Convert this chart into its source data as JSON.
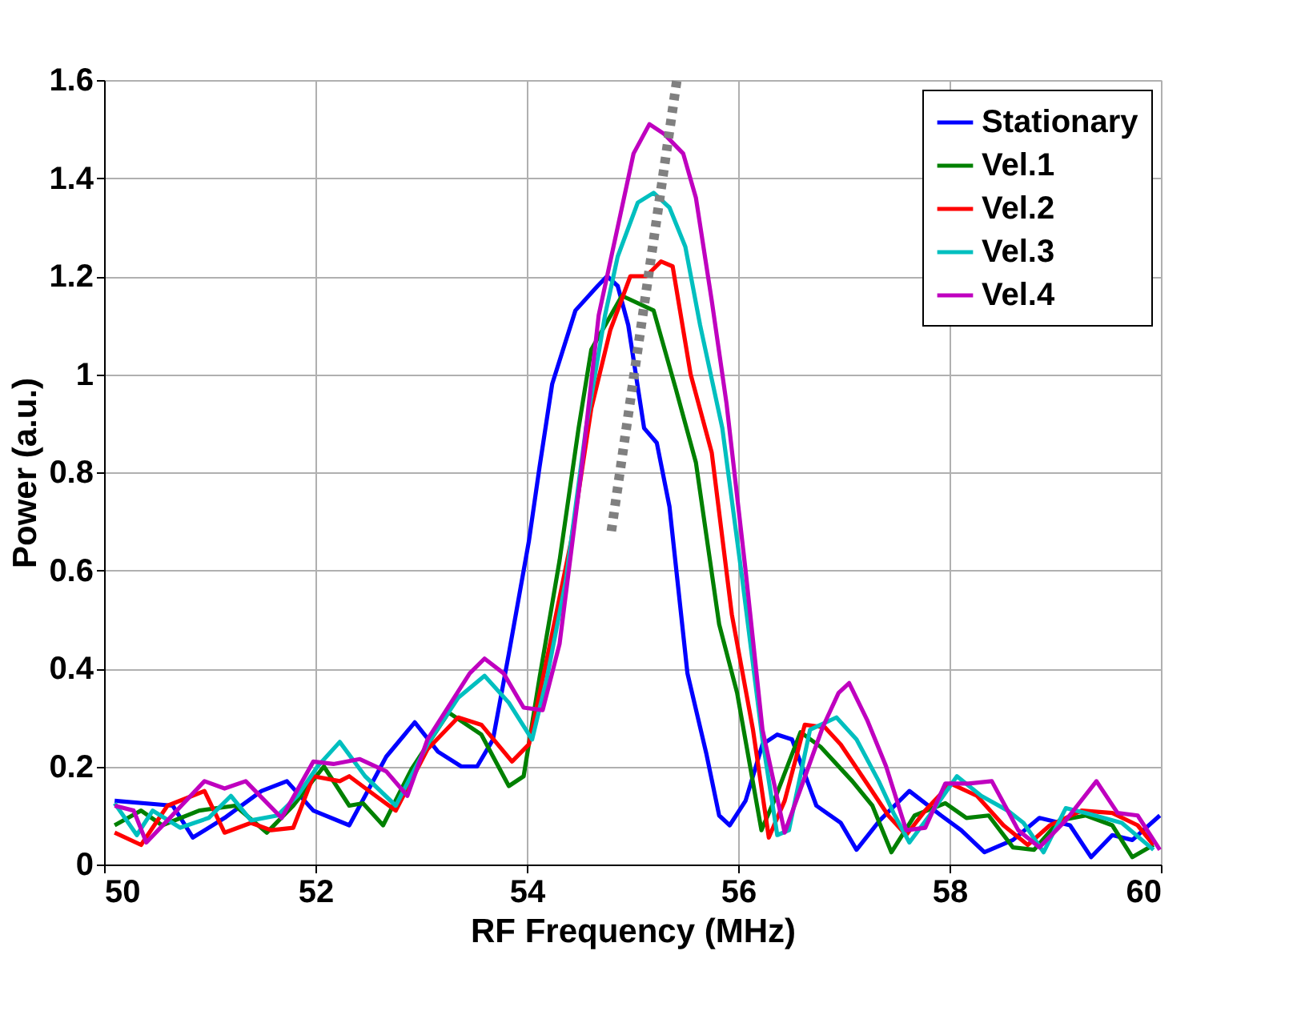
{
  "chart_data": {
    "type": "line",
    "xlabel": "RF Frequency (MHz)",
    "ylabel": "Power (a.u.)",
    "xlim": [
      50,
      60
    ],
    "xticks": [
      50,
      52,
      54,
      56,
      58,
      60
    ],
    "ylim": [
      0,
      1.6
    ],
    "yticks": [
      0,
      0.2,
      0.4,
      0.6,
      0.8,
      1,
      1.2,
      1.4,
      1.6
    ],
    "grid": true,
    "legend": "top right",
    "line_style": "solid",
    "series": [
      {
        "name": "Stationary",
        "color": "#0000ff",
        "x": [
          50.1,
          50.65,
          50.84,
          51.14,
          51.49,
          51.73,
          51.98,
          52.32,
          52.67,
          52.94,
          53.16,
          53.38,
          53.53,
          53.68,
          53.83,
          54.02,
          54.12,
          54.24,
          54.46,
          54.67,
          54.76,
          54.86,
          54.96,
          55.11,
          55.23,
          55.35,
          55.52,
          55.7,
          55.82,
          55.92,
          56.07,
          56.23,
          56.37,
          56.51,
          56.74,
          56.97,
          57.12,
          57.34,
          57.62,
          57.92,
          58.11,
          58.33,
          58.6,
          58.85,
          59.14,
          59.34,
          59.54,
          59.73,
          59.99
        ],
        "values": [
          0.13,
          0.12,
          0.055,
          0.095,
          0.15,
          0.17,
          0.11,
          0.08,
          0.22,
          0.29,
          0.23,
          0.2,
          0.2,
          0.255,
          0.43,
          0.66,
          0.81,
          0.98,
          1.13,
          1.18,
          1.2,
          1.18,
          1.1,
          0.89,
          0.86,
          0.73,
          0.39,
          0.225,
          0.1,
          0.08,
          0.13,
          0.245,
          0.265,
          0.255,
          0.12,
          0.085,
          0.03,
          0.09,
          0.15,
          0.1,
          0.07,
          0.025,
          0.05,
          0.095,
          0.08,
          0.015,
          0.06,
          0.05,
          0.1
        ]
      },
      {
        "name": "Vel.1",
        "color": "#008000",
        "x": [
          50.1,
          50.35,
          50.55,
          50.9,
          51.24,
          51.54,
          51.79,
          52.08,
          52.32,
          52.45,
          52.64,
          52.91,
          53.26,
          53.57,
          53.83,
          53.97,
          54.12,
          54.31,
          54.49,
          54.61,
          54.9,
          55.2,
          55.41,
          55.6,
          55.82,
          55.99,
          56.22,
          56.34,
          56.59,
          56.78,
          57.08,
          57.27,
          57.45,
          57.67,
          57.96,
          58.16,
          58.37,
          58.6,
          58.8,
          59.04,
          59.29,
          59.54,
          59.73,
          59.93
        ],
        "values": [
          0.08,
          0.11,
          0.08,
          0.11,
          0.12,
          0.065,
          0.12,
          0.2,
          0.12,
          0.125,
          0.08,
          0.195,
          0.31,
          0.265,
          0.16,
          0.18,
          0.38,
          0.62,
          0.89,
          1.05,
          1.16,
          1.13,
          0.97,
          0.82,
          0.49,
          0.35,
          0.07,
          0.13,
          0.27,
          0.24,
          0.17,
          0.12,
          0.025,
          0.1,
          0.125,
          0.095,
          0.1,
          0.035,
          0.03,
          0.09,
          0.1,
          0.08,
          0.015,
          0.04
        ]
      },
      {
        "name": "Vel.2",
        "color": "#ff0000",
        "x": [
          50.1,
          50.35,
          50.6,
          50.95,
          51.14,
          51.39,
          51.58,
          51.79,
          51.98,
          52.23,
          52.32,
          52.57,
          52.76,
          53.06,
          53.35,
          53.57,
          53.86,
          54.02,
          54.22,
          54.42,
          54.61,
          54.79,
          54.98,
          55.13,
          55.27,
          55.38,
          55.55,
          55.75,
          55.94,
          56.14,
          56.29,
          56.44,
          56.63,
          56.82,
          56.97,
          57.22,
          57.42,
          57.59,
          57.77,
          58.01,
          58.26,
          58.51,
          58.74,
          58.95,
          59.25,
          59.54,
          59.78,
          59.93
        ],
        "values": [
          0.065,
          0.04,
          0.12,
          0.15,
          0.065,
          0.085,
          0.07,
          0.075,
          0.18,
          0.17,
          0.18,
          0.14,
          0.11,
          0.235,
          0.3,
          0.285,
          0.21,
          0.245,
          0.45,
          0.66,
          0.93,
          1.09,
          1.2,
          1.2,
          1.23,
          1.22,
          1.0,
          0.84,
          0.51,
          0.275,
          0.055,
          0.13,
          0.285,
          0.28,
          0.245,
          0.165,
          0.1,
          0.06,
          0.11,
          0.165,
          0.14,
          0.08,
          0.04,
          0.08,
          0.11,
          0.105,
          0.08,
          0.04
        ]
      },
      {
        "name": "Vel.3",
        "color": "#00bfbf",
        "x": [
          50.1,
          50.31,
          50.46,
          50.72,
          50.99,
          51.2,
          51.39,
          51.64,
          51.83,
          52.02,
          52.23,
          52.47,
          52.76,
          53.06,
          53.35,
          53.6,
          53.83,
          54.05,
          54.19,
          54.37,
          54.56,
          54.74,
          54.86,
          55.05,
          55.2,
          55.35,
          55.5,
          55.64,
          55.85,
          56.04,
          56.23,
          56.37,
          56.48,
          56.68,
          56.93,
          57.12,
          57.33,
          57.47,
          57.62,
          57.81,
          58.07,
          58.3,
          58.55,
          58.7,
          58.89,
          59.1,
          59.29,
          59.63,
          59.93
        ],
        "values": [
          0.125,
          0.06,
          0.11,
          0.075,
          0.095,
          0.14,
          0.09,
          0.1,
          0.14,
          0.2,
          0.25,
          0.18,
          0.12,
          0.245,
          0.34,
          0.385,
          0.33,
          0.255,
          0.38,
          0.58,
          0.89,
          1.12,
          1.24,
          1.35,
          1.37,
          1.34,
          1.26,
          1.1,
          0.89,
          0.58,
          0.255,
          0.06,
          0.07,
          0.275,
          0.3,
          0.255,
          0.17,
          0.105,
          0.045,
          0.1,
          0.18,
          0.14,
          0.11,
          0.085,
          0.025,
          0.115,
          0.105,
          0.085,
          0.03
        ]
      },
      {
        "name": "Vel.4",
        "color": "#bf00bf",
        "x": [
          50.1,
          50.28,
          50.4,
          50.6,
          50.95,
          51.14,
          51.34,
          51.68,
          51.98,
          52.17,
          52.42,
          52.67,
          52.87,
          53.06,
          53.46,
          53.6,
          53.78,
          53.97,
          54.15,
          54.31,
          54.52,
          54.68,
          54.86,
          55.01,
          55.16,
          55.3,
          55.48,
          55.6,
          55.75,
          55.89,
          56.07,
          56.23,
          56.44,
          56.6,
          56.8,
          56.95,
          57.05,
          57.22,
          57.4,
          57.59,
          57.77,
          57.96,
          58.18,
          58.4,
          58.65,
          58.85,
          59.1,
          59.39,
          59.59,
          59.78,
          59.99
        ],
        "values": [
          0.12,
          0.11,
          0.045,
          0.09,
          0.17,
          0.155,
          0.17,
          0.095,
          0.21,
          0.205,
          0.215,
          0.19,
          0.14,
          0.255,
          0.39,
          0.42,
          0.39,
          0.32,
          0.315,
          0.45,
          0.81,
          1.12,
          1.3,
          1.45,
          1.51,
          1.49,
          1.45,
          1.36,
          1.15,
          0.94,
          0.6,
          0.275,
          0.065,
          0.16,
          0.28,
          0.35,
          0.37,
          0.295,
          0.2,
          0.07,
          0.075,
          0.165,
          0.165,
          0.17,
          0.07,
          0.035,
          0.09,
          0.17,
          0.105,
          0.1,
          0.03
        ]
      },
      {
        "type": "line",
        "line_style": "dotted",
        "color": "#808080",
        "x": [
          54.8,
          55.42
        ],
        "values": [
          0.68,
          1.6
        ]
      }
    ]
  }
}
